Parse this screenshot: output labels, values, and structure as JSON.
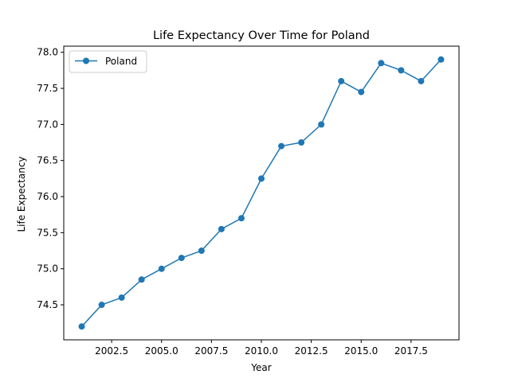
{
  "chart_data": {
    "type": "line",
    "title": "Life Expectancy Over Time for Poland",
    "xlabel": "Year",
    "ylabel": "Life Expectancy",
    "xlim": [
      2000.1,
      2019.9
    ],
    "ylim": [
      74.015,
      78.085
    ],
    "x_ticks": [
      2002.5,
      2005.0,
      2007.5,
      2010.0,
      2012.5,
      2015.0,
      2017.5
    ],
    "x_tick_labels": [
      "2002.5",
      "2005.0",
      "2007.5",
      "2010.0",
      "2012.5",
      "2015.0",
      "2017.5"
    ],
    "y_ticks": [
      74.5,
      75.0,
      75.5,
      76.0,
      76.5,
      77.0,
      77.5,
      78.0
    ],
    "y_tick_labels": [
      "74.5",
      "75.0",
      "75.5",
      "76.0",
      "76.5",
      "77.0",
      "77.5",
      "78.0"
    ],
    "grid": false,
    "legend_position": "top-left",
    "series": [
      {
        "name": "Poland",
        "color": "#1f77b4",
        "marker": "circle",
        "x": [
          2001,
          2002,
          2003,
          2004,
          2005,
          2006,
          2007,
          2008,
          2009,
          2010,
          2011,
          2012,
          2013,
          2014,
          2015,
          2016,
          2017,
          2018,
          2019
        ],
        "y": [
          74.2,
          74.5,
          74.6,
          74.85,
          75.0,
          75.15,
          75.25,
          75.55,
          75.7,
          76.25,
          76.7,
          76.75,
          77.0,
          77.6,
          77.45,
          77.85,
          77.75,
          77.6,
          77.9
        ]
      }
    ]
  }
}
